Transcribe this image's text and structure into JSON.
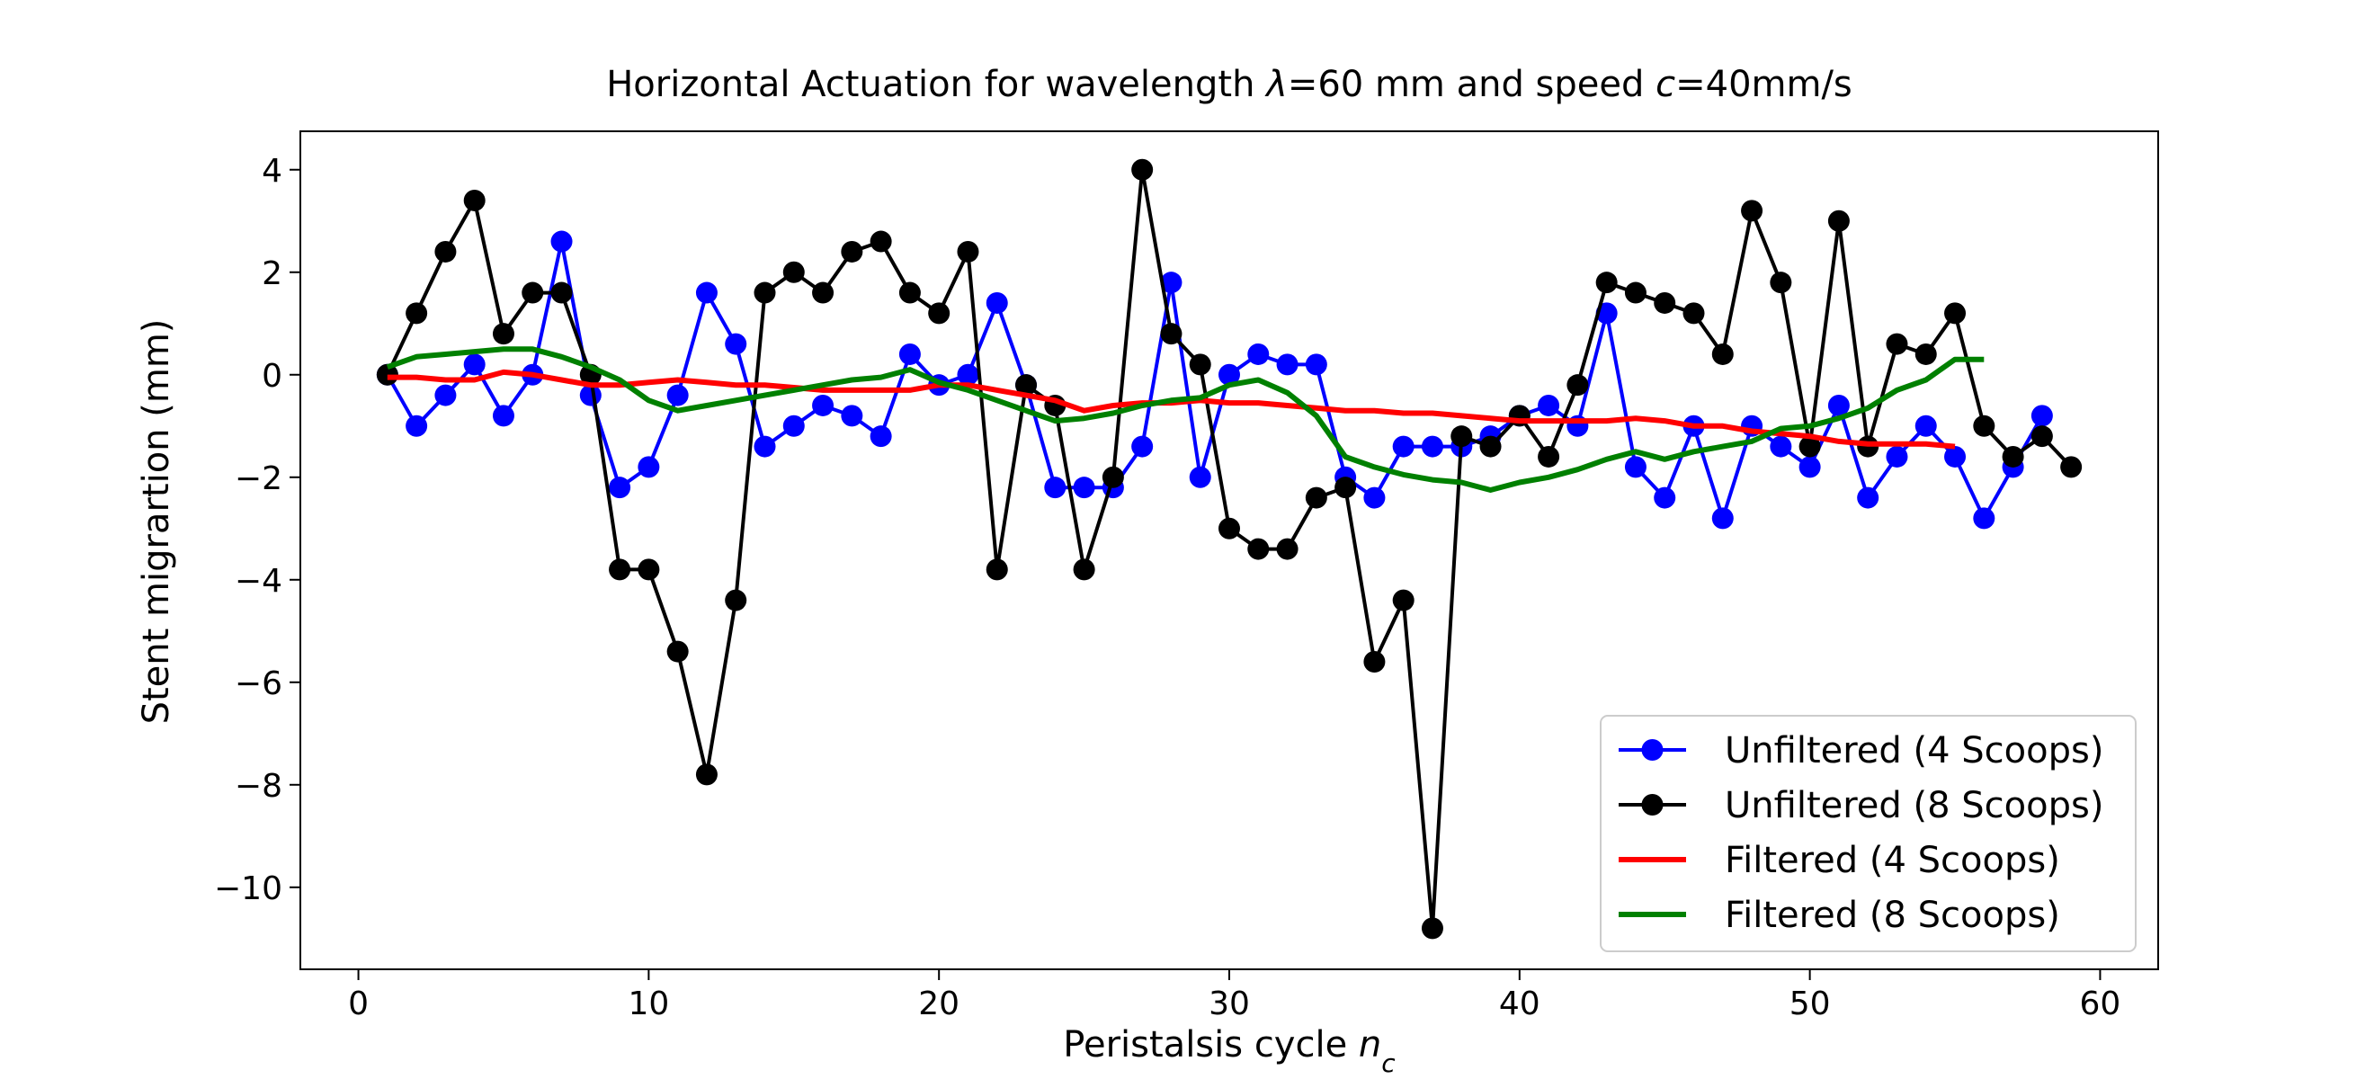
{
  "chart_data": {
    "type": "line",
    "title": "Horizontal Actuation for wavelength λ=60 mm and speed c=40mm/s",
    "title_parts": [
      {
        "text": "Horizontal Actuation for wavelength ",
        "italic": false
      },
      {
        "text": "λ",
        "italic": true
      },
      {
        "text": "=60 mm and speed ",
        "italic": false
      },
      {
        "text": "c",
        "italic": true
      },
      {
        "text": "=40mm/s",
        "italic": false
      }
    ],
    "xlabel": "Peristalsis cycle n_c",
    "xlabel_parts": [
      {
        "text": "Peristalsis cycle ",
        "italic": false
      },
      {
        "text": "n",
        "italic": true
      },
      {
        "text": "c",
        "italic": true,
        "subscript": true
      }
    ],
    "ylabel": "Stent migrartion (mm)",
    "xlim": [
      -2,
      62
    ],
    "ylim": [
      -11.6,
      4.75
    ],
    "xticks": [
      0,
      10,
      20,
      30,
      40,
      50,
      60
    ],
    "xtick_labels": [
      "0",
      "10",
      "20",
      "30",
      "40",
      "50",
      "60"
    ],
    "yticks": [
      4,
      2,
      0,
      -2,
      -4,
      -6,
      -8,
      -10
    ],
    "ytick_labels": [
      "4",
      "2",
      "0",
      "−2",
      "−4",
      "−6",
      "−8",
      "−10"
    ],
    "grid": false,
    "legend_position": "lower-right",
    "series": [
      {
        "name": "Unfiltered (4 Scoops)",
        "color": "#0000ff",
        "marker": "circle",
        "x": [
          1,
          2,
          3,
          4,
          5,
          6,
          7,
          8,
          9,
          10,
          11,
          12,
          13,
          14,
          15,
          16,
          17,
          18,
          19,
          20,
          21,
          22,
          23,
          24,
          25,
          26,
          27,
          28,
          29,
          30,
          31,
          32,
          33,
          34,
          35,
          36,
          37,
          38,
          39,
          40,
          41,
          42,
          43,
          44,
          45,
          46,
          47,
          48,
          49,
          50,
          51,
          52,
          53,
          54,
          55,
          56,
          57,
          58
        ],
        "y": [
          0.0,
          -1.0,
          -0.4,
          0.2,
          -0.8,
          0.0,
          2.6,
          -0.4,
          -2.2,
          -1.8,
          -0.4,
          1.6,
          0.6,
          -1.4,
          -1.0,
          -0.6,
          -0.8,
          -1.2,
          0.4,
          -0.2,
          0.0,
          1.4,
          -0.2,
          -2.2,
          -2.2,
          -2.2,
          -1.4,
          1.8,
          -2.0,
          0.0,
          0.4,
          0.2,
          0.2,
          -2.0,
          -2.4,
          -1.4,
          -1.4,
          -1.4,
          -1.2,
          -0.8,
          -0.6,
          -1.0,
          1.2,
          -1.8,
          -2.4,
          -1.0,
          -2.8,
          -1.0,
          -1.4,
          -1.8,
          -0.6,
          -2.4,
          -1.6,
          -1.0,
          -1.6,
          -2.8,
          -1.8,
          -0.8
        ]
      },
      {
        "name": "Unfiltered (8 Scoops)",
        "color": "#000000",
        "marker": "circle",
        "x": [
          1,
          2,
          3,
          4,
          5,
          6,
          7,
          8,
          9,
          10,
          11,
          12,
          13,
          14,
          15,
          16,
          17,
          18,
          19,
          20,
          21,
          22,
          23,
          24,
          25,
          26,
          27,
          28,
          29,
          30,
          31,
          32,
          33,
          34,
          35,
          36,
          37,
          38,
          39,
          40,
          41,
          42,
          43,
          44,
          45,
          46,
          47,
          48,
          49,
          50,
          51,
          52,
          53,
          54,
          55,
          56,
          57,
          58,
          59
        ],
        "y": [
          0.0,
          1.2,
          2.4,
          3.4,
          0.8,
          1.6,
          1.6,
          0.0,
          -3.8,
          -3.8,
          -5.4,
          -7.8,
          -4.4,
          1.6,
          2.0,
          1.6,
          2.4,
          2.6,
          1.6,
          1.2,
          2.4,
          -3.8,
          -0.2,
          -0.6,
          -3.8,
          -2.0,
          4.0,
          0.8,
          0.2,
          -3.0,
          -3.4,
          -3.4,
          -2.4,
          -2.2,
          -5.6,
          -4.4,
          -10.8,
          -1.2,
          -1.4,
          -0.8,
          -1.6,
          -0.2,
          1.8,
          1.6,
          1.4,
          1.2,
          0.4,
          3.2,
          1.8,
          -1.4,
          3.0,
          -1.4,
          0.6,
          0.4,
          1.2,
          -1.0,
          -1.6,
          -1.2,
          -1.8
        ]
      },
      {
        "name": "Filtered (4 Scoops)",
        "color": "#ff0000",
        "marker": "none",
        "x": [
          1,
          2,
          3,
          4,
          5,
          6,
          7,
          8,
          9,
          10,
          11,
          12,
          13,
          14,
          15,
          16,
          17,
          18,
          19,
          20,
          21,
          22,
          23,
          24,
          25,
          26,
          27,
          28,
          29,
          30,
          31,
          32,
          33,
          34,
          35,
          36,
          37,
          38,
          39,
          40,
          41,
          42,
          43,
          44,
          45,
          46,
          47,
          48,
          49,
          50,
          51,
          52,
          53,
          54,
          55
        ],
        "y": [
          -0.05,
          -0.05,
          -0.1,
          -0.1,
          0.05,
          0.0,
          -0.1,
          -0.2,
          -0.2,
          -0.15,
          -0.1,
          -0.15,
          -0.2,
          -0.2,
          -0.25,
          -0.3,
          -0.3,
          -0.3,
          -0.3,
          -0.2,
          -0.2,
          -0.3,
          -0.4,
          -0.5,
          -0.7,
          -0.6,
          -0.55,
          -0.55,
          -0.5,
          -0.55,
          -0.55,
          -0.6,
          -0.65,
          -0.7,
          -0.7,
          -0.75,
          -0.75,
          -0.8,
          -0.85,
          -0.9,
          -0.9,
          -0.9,
          -0.9,
          -0.85,
          -0.9,
          -1.0,
          -1.0,
          -1.1,
          -1.15,
          -1.2,
          -1.3,
          -1.35,
          -1.35,
          -1.35,
          -1.4
        ]
      },
      {
        "name": "Filtered (8 Scoops)",
        "color": "#008000",
        "marker": "none",
        "x": [
          1,
          2,
          3,
          4,
          5,
          6,
          7,
          8,
          9,
          10,
          11,
          12,
          13,
          14,
          15,
          16,
          17,
          18,
          19,
          20,
          21,
          22,
          23,
          24,
          25,
          26,
          27,
          28,
          29,
          30,
          31,
          32,
          33,
          34,
          35,
          36,
          37,
          38,
          39,
          40,
          41,
          42,
          43,
          44,
          45,
          46,
          47,
          48,
          49,
          50,
          51,
          52,
          53,
          54,
          55,
          56
        ],
        "y": [
          0.15,
          0.35,
          0.4,
          0.45,
          0.5,
          0.5,
          0.35,
          0.15,
          -0.1,
          -0.5,
          -0.7,
          -0.6,
          -0.5,
          -0.4,
          -0.3,
          -0.2,
          -0.1,
          -0.05,
          0.1,
          -0.15,
          -0.3,
          -0.5,
          -0.7,
          -0.9,
          -0.85,
          -0.75,
          -0.6,
          -0.5,
          -0.45,
          -0.2,
          -0.1,
          -0.35,
          -0.8,
          -1.6,
          -1.8,
          -1.95,
          -2.05,
          -2.1,
          -2.25,
          -2.1,
          -2.0,
          -1.85,
          -1.65,
          -1.5,
          -1.65,
          -1.5,
          -1.4,
          -1.3,
          -1.05,
          -1.0,
          -0.85,
          -0.65,
          -0.3,
          -0.1,
          0.3,
          0.3
        ]
      }
    ]
  }
}
